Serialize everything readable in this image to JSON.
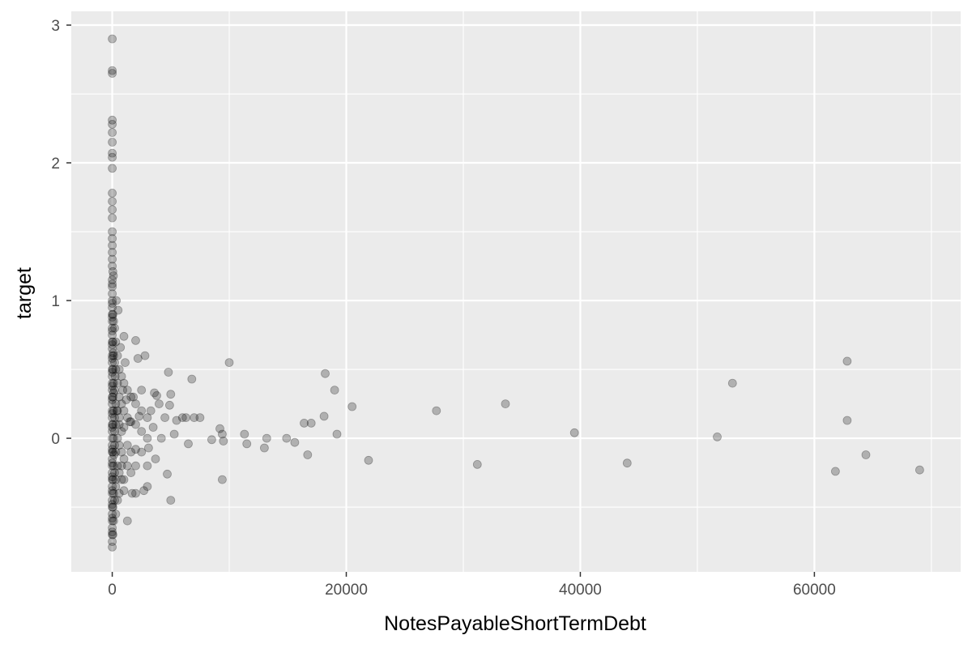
{
  "chart_data": {
    "type": "scatter",
    "title": "",
    "xlabel": "NotesPayableShortTermDebt",
    "ylabel": "target",
    "xlim": [
      -3500,
      72500
    ],
    "ylim": [
      -0.97,
      3.1
    ],
    "x_ticks": [
      0,
      20000,
      40000,
      60000
    ],
    "x_tick_labels": [
      "0",
      "20000",
      "40000",
      "60000"
    ],
    "y_ticks": [
      0,
      1,
      2,
      3
    ],
    "y_tick_labels": [
      "0",
      "1",
      "2",
      "3"
    ],
    "grid": true,
    "legend": "none",
    "point_color": "#000000",
    "point_alpha": 0.25,
    "panel_background": "#ebebeb",
    "grid_color": "#ffffff",
    "points": [
      [
        0,
        2.9
      ],
      [
        0,
        2.67
      ],
      [
        0,
        2.65
      ],
      [
        0,
        2.31
      ],
      [
        0,
        2.28
      ],
      [
        0,
        2.22
      ],
      [
        0,
        2.15
      ],
      [
        0,
        2.07
      ],
      [
        0,
        2.04
      ],
      [
        0,
        1.96
      ],
      [
        0,
        1.78
      ],
      [
        0,
        1.72
      ],
      [
        0,
        1.66
      ],
      [
        0,
        1.6
      ],
      [
        0,
        1.5
      ],
      [
        0,
        1.45
      ],
      [
        0,
        1.4
      ],
      [
        0,
        1.35
      ],
      [
        0,
        1.3
      ],
      [
        0,
        1.25
      ],
      [
        50,
        1.21
      ],
      [
        100,
        1.18
      ],
      [
        0,
        1.15
      ],
      [
        0,
        1.1
      ],
      [
        0,
        1.05
      ],
      [
        0,
        1.0
      ],
      [
        0,
        0.95
      ],
      [
        0,
        0.9
      ],
      [
        0,
        0.85
      ],
      [
        0,
        0.8
      ],
      [
        0,
        0.75
      ],
      [
        0,
        0.7
      ],
      [
        0,
        0.65
      ],
      [
        0,
        0.6
      ],
      [
        0,
        0.55
      ],
      [
        0,
        0.5
      ],
      [
        0,
        0.45
      ],
      [
        0,
        0.4
      ],
      [
        0,
        0.35
      ],
      [
        0,
        0.3
      ],
      [
        0,
        0.25
      ],
      [
        0,
        0.2
      ],
      [
        0,
        0.15
      ],
      [
        0,
        0.1
      ],
      [
        0,
        0.05
      ],
      [
        0,
        0.0
      ],
      [
        0,
        -0.05
      ],
      [
        0,
        -0.1
      ],
      [
        0,
        -0.15
      ],
      [
        0,
        -0.2
      ],
      [
        0,
        -0.25
      ],
      [
        0,
        -0.3
      ],
      [
        0,
        -0.35
      ],
      [
        0,
        -0.4
      ],
      [
        0,
        -0.45
      ],
      [
        0,
        -0.5
      ],
      [
        0,
        -0.55
      ],
      [
        0,
        -0.6
      ],
      [
        0,
        -0.65
      ],
      [
        0,
        -0.7
      ],
      [
        0,
        -0.75
      ],
      [
        0,
        -0.79
      ],
      [
        80,
        0.62
      ],
      [
        120,
        0.33
      ],
      [
        150,
        -0.12
      ],
      [
        200,
        0.05
      ],
      [
        250,
        0.45
      ],
      [
        300,
        -0.3
      ],
      [
        350,
        1.0
      ],
      [
        400,
        0.2
      ],
      [
        500,
        0.93
      ],
      [
        600,
        0.1
      ],
      [
        700,
        0.66
      ],
      [
        800,
        -0.2
      ],
      [
        900,
        0.35
      ],
      [
        1000,
        -0.38
      ],
      [
        1100,
        0.55
      ],
      [
        1200,
        0.28
      ],
      [
        1300,
        -0.6
      ],
      [
        1500,
        0.12
      ],
      [
        1000,
        0.74
      ],
      [
        1700,
        -0.4
      ],
      [
        1800,
        0.3
      ],
      [
        2000,
        0.71
      ],
      [
        2000,
        -0.4
      ],
      [
        2200,
        0.58
      ],
      [
        2300,
        0.16
      ],
      [
        2500,
        0.2
      ],
      [
        2700,
        -0.38
      ],
      [
        2800,
        0.6
      ],
      [
        3000,
        -0.35
      ],
      [
        3100,
        -0.07
      ],
      [
        3300,
        0.2
      ],
      [
        3500,
        0.08
      ],
      [
        3600,
        0.33
      ],
      [
        3700,
        -0.15
      ],
      [
        3800,
        0.31
      ],
      [
        4000,
        0.25
      ],
      [
        4200,
        0.0
      ],
      [
        4500,
        0.15
      ],
      [
        4700,
        -0.26
      ],
      [
        4800,
        0.48
      ],
      [
        4900,
        0.24
      ],
      [
        5000,
        0.32
      ],
      [
        5000,
        -0.45
      ],
      [
        5300,
        0.03
      ],
      [
        5500,
        0.13
      ],
      [
        6000,
        0.15
      ],
      [
        6300,
        0.15
      ],
      [
        6500,
        -0.04
      ],
      [
        6800,
        0.43
      ],
      [
        7000,
        0.15
      ],
      [
        7500,
        0.15
      ],
      [
        8500,
        -0.01
      ],
      [
        9200,
        0.07
      ],
      [
        9400,
        0.03
      ],
      [
        9400,
        -0.3
      ],
      [
        9500,
        -0.02
      ],
      [
        10000,
        0.55
      ],
      [
        11300,
        0.03
      ],
      [
        11500,
        -0.04
      ],
      [
        13000,
        -0.07
      ],
      [
        13200,
        0.0
      ],
      [
        14900,
        0.0
      ],
      [
        15600,
        -0.03
      ],
      [
        16400,
        0.11
      ],
      [
        16700,
        -0.12
      ],
      [
        17000,
        0.11
      ],
      [
        18100,
        0.16
      ],
      [
        18200,
        0.47
      ],
      [
        19000,
        0.35
      ],
      [
        19200,
        0.03
      ],
      [
        20500,
        0.23
      ],
      [
        21900,
        -0.16
      ],
      [
        27700,
        0.2
      ],
      [
        31200,
        -0.19
      ],
      [
        33600,
        0.25
      ],
      [
        39500,
        0.04
      ],
      [
        44000,
        -0.18
      ],
      [
        51700,
        0.01
      ],
      [
        53000,
        0.4
      ],
      [
        61800,
        -0.24
      ],
      [
        62800,
        0.56
      ],
      [
        62800,
        0.13
      ],
      [
        64400,
        -0.12
      ],
      [
        69000,
        -0.23
      ],
      [
        0,
        1.12
      ],
      [
        0,
        0.98
      ],
      [
        0,
        0.88
      ],
      [
        0,
        0.78
      ],
      [
        0,
        0.68
      ],
      [
        0,
        0.58
      ],
      [
        0,
        0.48
      ],
      [
        0,
        0.38
      ],
      [
        0,
        0.28
      ],
      [
        0,
        0.18
      ],
      [
        0,
        0.08
      ],
      [
        0,
        -0.08
      ],
      [
        0,
        -0.18
      ],
      [
        0,
        -0.28
      ],
      [
        0,
        -0.38
      ],
      [
        0,
        -0.48
      ],
      [
        0,
        -0.58
      ],
      [
        0,
        -0.68
      ],
      [
        60,
        0.9
      ],
      [
        60,
        0.7
      ],
      [
        60,
        0.5
      ],
      [
        60,
        0.3
      ],
      [
        60,
        0.1
      ],
      [
        60,
        -0.1
      ],
      [
        60,
        -0.3
      ],
      [
        60,
        -0.5
      ],
      [
        60,
        -0.7
      ],
      [
        120,
        0.85
      ],
      [
        120,
        0.6
      ],
      [
        120,
        0.4
      ],
      [
        120,
        0.2
      ],
      [
        120,
        0.0
      ],
      [
        120,
        -0.2
      ],
      [
        120,
        -0.4
      ],
      [
        120,
        -0.6
      ],
      [
        200,
        0.8
      ],
      [
        200,
        0.55
      ],
      [
        200,
        0.35
      ],
      [
        200,
        0.15
      ],
      [
        200,
        -0.05
      ],
      [
        200,
        -0.25
      ],
      [
        200,
        -0.45
      ],
      [
        300,
        0.7
      ],
      [
        300,
        0.5
      ],
      [
        300,
        0.25
      ],
      [
        300,
        0.1
      ],
      [
        300,
        -0.1
      ],
      [
        300,
        -0.35
      ],
      [
        300,
        -0.55
      ],
      [
        450,
        0.6
      ],
      [
        450,
        0.4
      ],
      [
        450,
        0.2
      ],
      [
        450,
        0.0
      ],
      [
        450,
        -0.2
      ],
      [
        450,
        -0.45
      ],
      [
        600,
        0.5
      ],
      [
        600,
        0.3
      ],
      [
        600,
        0.15
      ],
      [
        600,
        -0.05
      ],
      [
        600,
        -0.25
      ],
      [
        600,
        -0.4
      ],
      [
        800,
        0.45
      ],
      [
        800,
        0.25
      ],
      [
        800,
        0.05
      ],
      [
        800,
        -0.1
      ],
      [
        800,
        -0.3
      ],
      [
        1000,
        0.4
      ],
      [
        1000,
        0.2
      ],
      [
        1000,
        0.08
      ],
      [
        1000,
        -0.15
      ],
      [
        1000,
        -0.3
      ],
      [
        1300,
        0.35
      ],
      [
        1300,
        0.15
      ],
      [
        1300,
        -0.05
      ],
      [
        1300,
        -0.2
      ],
      [
        1600,
        0.3
      ],
      [
        1600,
        0.12
      ],
      [
        1600,
        -0.1
      ],
      [
        1600,
        -0.25
      ],
      [
        2000,
        0.25
      ],
      [
        2000,
        0.1
      ],
      [
        2000,
        -0.08
      ],
      [
        2000,
        -0.2
      ],
      [
        2500,
        0.35
      ],
      [
        2500,
        0.05
      ],
      [
        2500,
        -0.1
      ],
      [
        3000,
        0.15
      ],
      [
        3000,
        0.0
      ],
      [
        3000,
        -0.2
      ]
    ]
  }
}
